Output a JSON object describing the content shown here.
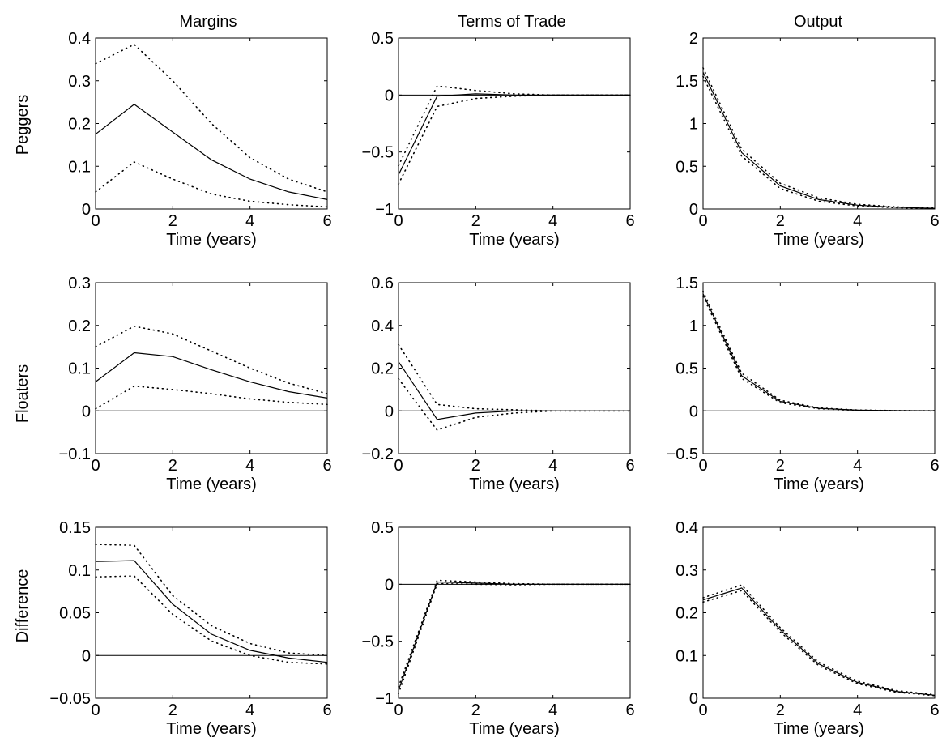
{
  "column_titles": [
    "Margins",
    "Terms of Trade",
    "Output"
  ],
  "row_labels": [
    "Peggers",
    "Floaters",
    "Difference"
  ],
  "chart_data": [
    {
      "type": "line",
      "row": "Peggers",
      "column": "Margins",
      "xlabel": "Time (years)",
      "xlim": [
        0,
        6
      ],
      "xticks": [
        0,
        2,
        4,
        6
      ],
      "ylim": [
        0,
        0.4
      ],
      "yticks": [
        0,
        0.1,
        0.2,
        0.3,
        0.4
      ],
      "ytick_labels": [
        "0",
        "0.1",
        "0.2",
        "0.3",
        "0.4"
      ],
      "zero_line": false,
      "x": [
        0,
        1,
        2,
        3,
        4,
        5,
        6
      ],
      "series": [
        {
          "style": "solid",
          "values": [
            0.175,
            0.245,
            0.18,
            0.115,
            0.07,
            0.04,
            0.022
          ]
        },
        {
          "style": "dotted",
          "values": [
            0.34,
            0.385,
            0.3,
            0.2,
            0.12,
            0.07,
            0.04
          ]
        },
        {
          "style": "dotted",
          "values": [
            0.04,
            0.11,
            0.07,
            0.035,
            0.018,
            0.01,
            0.005
          ]
        }
      ]
    },
    {
      "type": "line",
      "row": "Peggers",
      "column": "Terms of Trade",
      "xlabel": "Time (years)",
      "xlim": [
        0,
        6
      ],
      "xticks": [
        0,
        2,
        4,
        6
      ],
      "ylim": [
        -1,
        0.5
      ],
      "yticks": [
        -1,
        -0.5,
        0,
        0.5
      ],
      "ytick_labels": [
        "−1",
        "−0.5",
        "0",
        "0.5"
      ],
      "zero_line": true,
      "x": [
        0,
        1,
        2,
        3,
        4,
        5,
        6
      ],
      "series": [
        {
          "style": "solid",
          "values": [
            -0.7,
            -0.01,
            0.01,
            0,
            0,
            0,
            0
          ]
        },
        {
          "style": "dotted",
          "values": [
            -0.62,
            0.08,
            0.04,
            0.01,
            0,
            0,
            0
          ]
        },
        {
          "style": "dotted",
          "values": [
            -0.78,
            -0.1,
            -0.03,
            -0.01,
            0,
            0,
            0
          ]
        }
      ]
    },
    {
      "type": "line",
      "row": "Peggers",
      "column": "Output",
      "xlabel": "Time (years)",
      "xlim": [
        0,
        6
      ],
      "xticks": [
        0,
        2,
        4,
        6
      ],
      "ylim": [
        0,
        2
      ],
      "yticks": [
        0,
        0.5,
        1,
        1.5,
        2
      ],
      "ytick_labels": [
        "0",
        "0.5",
        "1",
        "1.5",
        "2"
      ],
      "zero_line": false,
      "x": [
        0,
        1,
        2,
        3,
        4,
        5,
        6
      ],
      "series": [
        {
          "style": "solid",
          "values": [
            1.6,
            0.66,
            0.27,
            0.11,
            0.045,
            0.02,
            0.008
          ]
        },
        {
          "style": "dotted",
          "values": [
            1.65,
            0.7,
            0.3,
            0.13,
            0.055,
            0.025,
            0.01
          ]
        },
        {
          "style": "dotted",
          "values": [
            1.55,
            0.62,
            0.24,
            0.09,
            0.035,
            0.015,
            0.006
          ]
        }
      ]
    },
    {
      "type": "line",
      "row": "Floaters",
      "column": "Margins",
      "xlabel": "Time (years)",
      "xlim": [
        0,
        6
      ],
      "xticks": [
        0,
        2,
        4,
        6
      ],
      "ylim": [
        -0.1,
        0.3
      ],
      "yticks": [
        -0.1,
        0,
        0.1,
        0.2,
        0.3
      ],
      "ytick_labels": [
        "−0.1",
        "0",
        "0.1",
        "0.2",
        "0.3"
      ],
      "zero_line": true,
      "x": [
        0,
        1,
        2,
        3,
        4,
        5,
        6
      ],
      "series": [
        {
          "style": "solid",
          "values": [
            0.068,
            0.136,
            0.127,
            0.096,
            0.068,
            0.045,
            0.03
          ]
        },
        {
          "style": "dotted",
          "values": [
            0.15,
            0.198,
            0.18,
            0.14,
            0.1,
            0.065,
            0.04
          ]
        },
        {
          "style": "dotted",
          "values": [
            0.005,
            0.058,
            0.05,
            0.04,
            0.028,
            0.02,
            0.015
          ]
        }
      ]
    },
    {
      "type": "line",
      "row": "Floaters",
      "column": "Terms of Trade",
      "xlabel": "Time (years)",
      "xlim": [
        0,
        6
      ],
      "xticks": [
        0,
        2,
        4,
        6
      ],
      "ylim": [
        -0.2,
        0.6
      ],
      "yticks": [
        -0.2,
        0,
        0.2,
        0.4,
        0.6
      ],
      "ytick_labels": [
        "−0.2",
        "0",
        "0.2",
        "0.4",
        "0.6"
      ],
      "zero_line": true,
      "x": [
        0,
        1,
        2,
        3,
        4,
        5,
        6
      ],
      "series": [
        {
          "style": "solid",
          "values": [
            0.23,
            -0.04,
            -0.01,
            0,
            0,
            0,
            0
          ]
        },
        {
          "style": "dotted",
          "values": [
            0.31,
            0.03,
            0.01,
            0.005,
            0,
            0,
            0
          ]
        },
        {
          "style": "dotted",
          "values": [
            0.15,
            -0.09,
            -0.03,
            -0.01,
            0,
            0,
            0
          ]
        }
      ]
    },
    {
      "type": "line",
      "row": "Floaters",
      "column": "Output",
      "xlabel": "Time (years)",
      "xlim": [
        0,
        6
      ],
      "xticks": [
        0,
        2,
        4,
        6
      ],
      "ylim": [
        -0.5,
        1.5
      ],
      "yticks": [
        -0.5,
        0,
        0.5,
        1,
        1.5
      ],
      "ytick_labels": [
        "−0.5",
        "0",
        "0.5",
        "1",
        "1.5"
      ],
      "zero_line": true,
      "x": [
        0,
        1,
        2,
        3,
        4,
        5,
        6
      ],
      "series": [
        {
          "style": "solid",
          "values": [
            1.37,
            0.41,
            0.11,
            0.03,
            0.008,
            0.002,
            0.001
          ]
        },
        {
          "style": "dotted",
          "values": [
            1.4,
            0.44,
            0.125,
            0.035,
            0.01,
            0.003,
            0.001
          ]
        },
        {
          "style": "dotted",
          "values": [
            1.34,
            0.38,
            0.095,
            0.025,
            0.006,
            0.001,
            0
          ]
        }
      ]
    },
    {
      "type": "line",
      "row": "Difference",
      "column": "Margins",
      "xlabel": "Time (years)",
      "xlim": [
        0,
        6
      ],
      "xticks": [
        0,
        2,
        4,
        6
      ],
      "ylim": [
        -0.05,
        0.15
      ],
      "yticks": [
        -0.05,
        0,
        0.05,
        0.1,
        0.15
      ],
      "ytick_labels": [
        "−0.05",
        "0",
        "0.05",
        "0.1",
        "0.15"
      ],
      "zero_line": true,
      "x": [
        0,
        1,
        2,
        3,
        4,
        5,
        6
      ],
      "series": [
        {
          "style": "solid",
          "values": [
            0.11,
            0.111,
            0.06,
            0.025,
            0.006,
            -0.003,
            -0.008
          ]
        },
        {
          "style": "dotted",
          "values": [
            0.13,
            0.129,
            0.07,
            0.035,
            0.014,
            0.003,
            0
          ]
        },
        {
          "style": "dotted",
          "values": [
            0.092,
            0.093,
            0.048,
            0.017,
            0,
            -0.008,
            -0.01
          ]
        }
      ]
    },
    {
      "type": "line",
      "row": "Difference",
      "column": "Terms of Trade",
      "xlabel": "Time (years)",
      "xlim": [
        0,
        6
      ],
      "xticks": [
        0,
        2,
        4,
        6
      ],
      "ylim": [
        -1,
        0.5
      ],
      "yticks": [
        -1,
        -0.5,
        0,
        0.5
      ],
      "ytick_labels": [
        "−1",
        "−0.5",
        "0",
        "0.5"
      ],
      "zero_line": true,
      "x": [
        0,
        1,
        2,
        3,
        4,
        5,
        6
      ],
      "series": [
        {
          "style": "solid",
          "values": [
            -0.93,
            0.02,
            0.01,
            0,
            0,
            0,
            0
          ]
        },
        {
          "style": "dotted",
          "values": [
            -0.9,
            0.035,
            0.02,
            0.005,
            0,
            0,
            0
          ]
        },
        {
          "style": "dotted",
          "values": [
            -0.96,
            0.005,
            0,
            -0.005,
            0,
            0,
            0
          ]
        }
      ]
    },
    {
      "type": "line",
      "row": "Difference",
      "column": "Output",
      "xlabel": "Time (years)",
      "xlim": [
        0,
        6
      ],
      "xticks": [
        0,
        2,
        4,
        6
      ],
      "ylim": [
        0,
        0.4
      ],
      "yticks": [
        0,
        0.1,
        0.2,
        0.3,
        0.4
      ],
      "ytick_labels": [
        "0",
        "0.1",
        "0.2",
        "0.3",
        "0.4"
      ],
      "zero_line": false,
      "x": [
        0,
        1,
        2,
        3,
        4,
        5,
        6
      ],
      "series": [
        {
          "style": "solid",
          "values": [
            0.23,
            0.258,
            0.16,
            0.08,
            0.037,
            0.016,
            0.007
          ]
        },
        {
          "style": "dotted",
          "values": [
            0.235,
            0.265,
            0.165,
            0.084,
            0.04,
            0.018,
            0.008
          ]
        },
        {
          "style": "dotted",
          "values": [
            0.225,
            0.252,
            0.155,
            0.076,
            0.034,
            0.014,
            0.006
          ]
        }
      ]
    }
  ]
}
